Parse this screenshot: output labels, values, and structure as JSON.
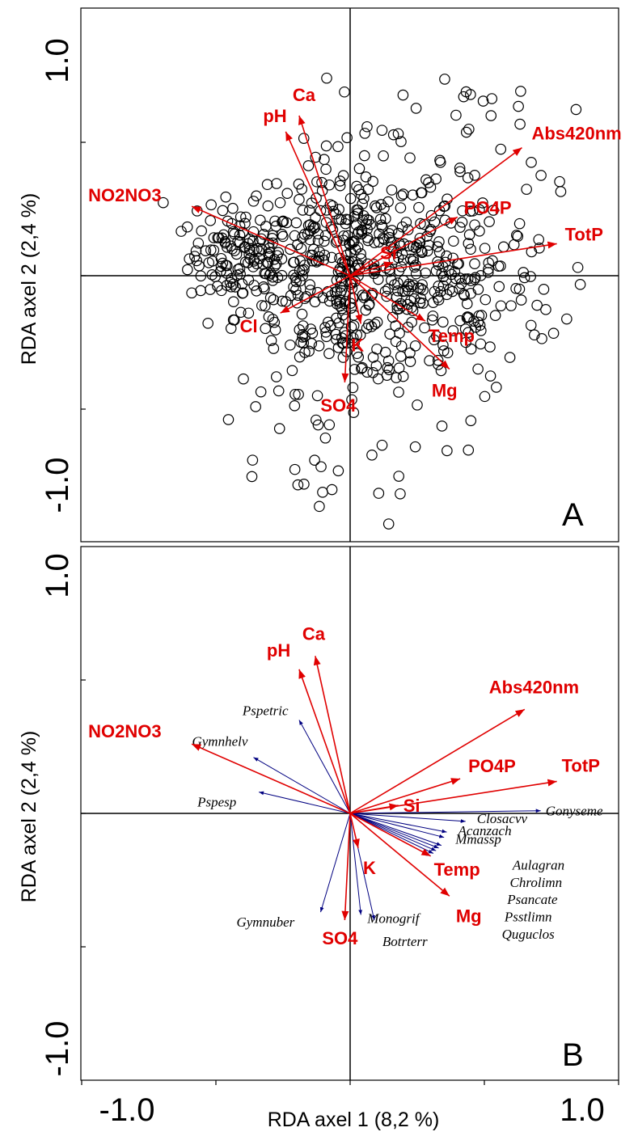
{
  "chart_data": [
    {
      "type": "scatter",
      "panel_label": "A",
      "ylabel": "RDA axel 2 (2,4 %)",
      "xlim": [
        -1.0,
        1.0
      ],
      "ylim": [
        -1.0,
        1.0
      ],
      "y_tick_labels": [
        "1.0",
        "-1.0"
      ],
      "env_arrows": [
        {
          "name": "NO2NO3",
          "x": -0.59,
          "y": 0.26
        },
        {
          "name": "pH",
          "x": -0.24,
          "y": 0.54
        },
        {
          "name": "Ca",
          "x": -0.19,
          "y": 0.6
        },
        {
          "name": "Abs420nm",
          "x": 0.64,
          "y": 0.48
        },
        {
          "name": "PO4P",
          "x": 0.4,
          "y": 0.22
        },
        {
          "name": "TotP",
          "x": 0.77,
          "y": 0.12
        },
        {
          "name": "Si",
          "x": 0.16,
          "y": 0.05
        },
        {
          "name": "Cl",
          "x": -0.26,
          "y": -0.14
        },
        {
          "name": "K",
          "x": 0.04,
          "y": -0.18
        },
        {
          "name": "SO4",
          "x": -0.02,
          "y": -0.4
        },
        {
          "name": "Temp",
          "x": 0.28,
          "y": -0.17
        },
        {
          "name": "Mg",
          "x": 0.37,
          "y": -0.35
        }
      ]
    },
    {
      "type": "scatter",
      "panel_label": "B",
      "xlabel": "RDA axel 1 (8,2 %)",
      "ylabel": "RDA axel 2 (2,4 %)",
      "xlim": [
        -1.0,
        1.0
      ],
      "ylim": [
        -1.0,
        1.0
      ],
      "x_tick_labels": [
        "-1.0",
        "1.0"
      ],
      "y_tick_labels": [
        "1.0",
        "-1.0"
      ],
      "env_arrows": [
        {
          "name": "NO2NO3",
          "x": -0.59,
          "y": 0.26
        },
        {
          "name": "pH",
          "x": -0.19,
          "y": 0.54
        },
        {
          "name": "Ca",
          "x": -0.13,
          "y": 0.59
        },
        {
          "name": "Abs420nm",
          "x": 0.65,
          "y": 0.39
        },
        {
          "name": "PO4P",
          "x": 0.41,
          "y": 0.13
        },
        {
          "name": "TotP",
          "x": 0.77,
          "y": 0.12
        },
        {
          "name": "Si",
          "x": 0.18,
          "y": 0.03
        },
        {
          "name": "K",
          "x": 0.03,
          "y": -0.13
        },
        {
          "name": "SO4",
          "x": -0.02,
          "y": -0.4
        },
        {
          "name": "Temp",
          "x": 0.3,
          "y": -0.16
        },
        {
          "name": "Mg",
          "x": 0.37,
          "y": -0.31
        }
      ],
      "species_arrows": [
        {
          "name": "Pspetric",
          "x": -0.19,
          "y": 0.35
        },
        {
          "name": "Gymnhelv",
          "x": -0.36,
          "y": 0.21
        },
        {
          "name": "Pspesp",
          "x": -0.34,
          "y": 0.08
        },
        {
          "name": "Gonyseme",
          "x": 0.71,
          "y": 0.01
        },
        {
          "name": "Closacvv",
          "x": 0.43,
          "y": -0.03
        },
        {
          "name": "Acanzach",
          "x": 0.36,
          "y": -0.07
        },
        {
          "name": "Mmassp",
          "x": 0.35,
          "y": -0.09
        },
        {
          "name": "Aulagran",
          "x": 0.34,
          "y": -0.12
        },
        {
          "name": "Chrolimn",
          "x": 0.33,
          "y": -0.13
        },
        {
          "name": "Psancate",
          "x": 0.32,
          "y": -0.14
        },
        {
          "name": "Psstlimn",
          "x": 0.31,
          "y": -0.15
        },
        {
          "name": "Quguclos",
          "x": 0.3,
          "y": -0.16
        },
        {
          "name": "Gymnuber",
          "x": -0.11,
          "y": -0.37
        },
        {
          "name": "Monogrif",
          "x": 0.04,
          "y": -0.38
        },
        {
          "name": "Botrterr",
          "x": 0.09,
          "y": -0.4
        }
      ]
    }
  ]
}
